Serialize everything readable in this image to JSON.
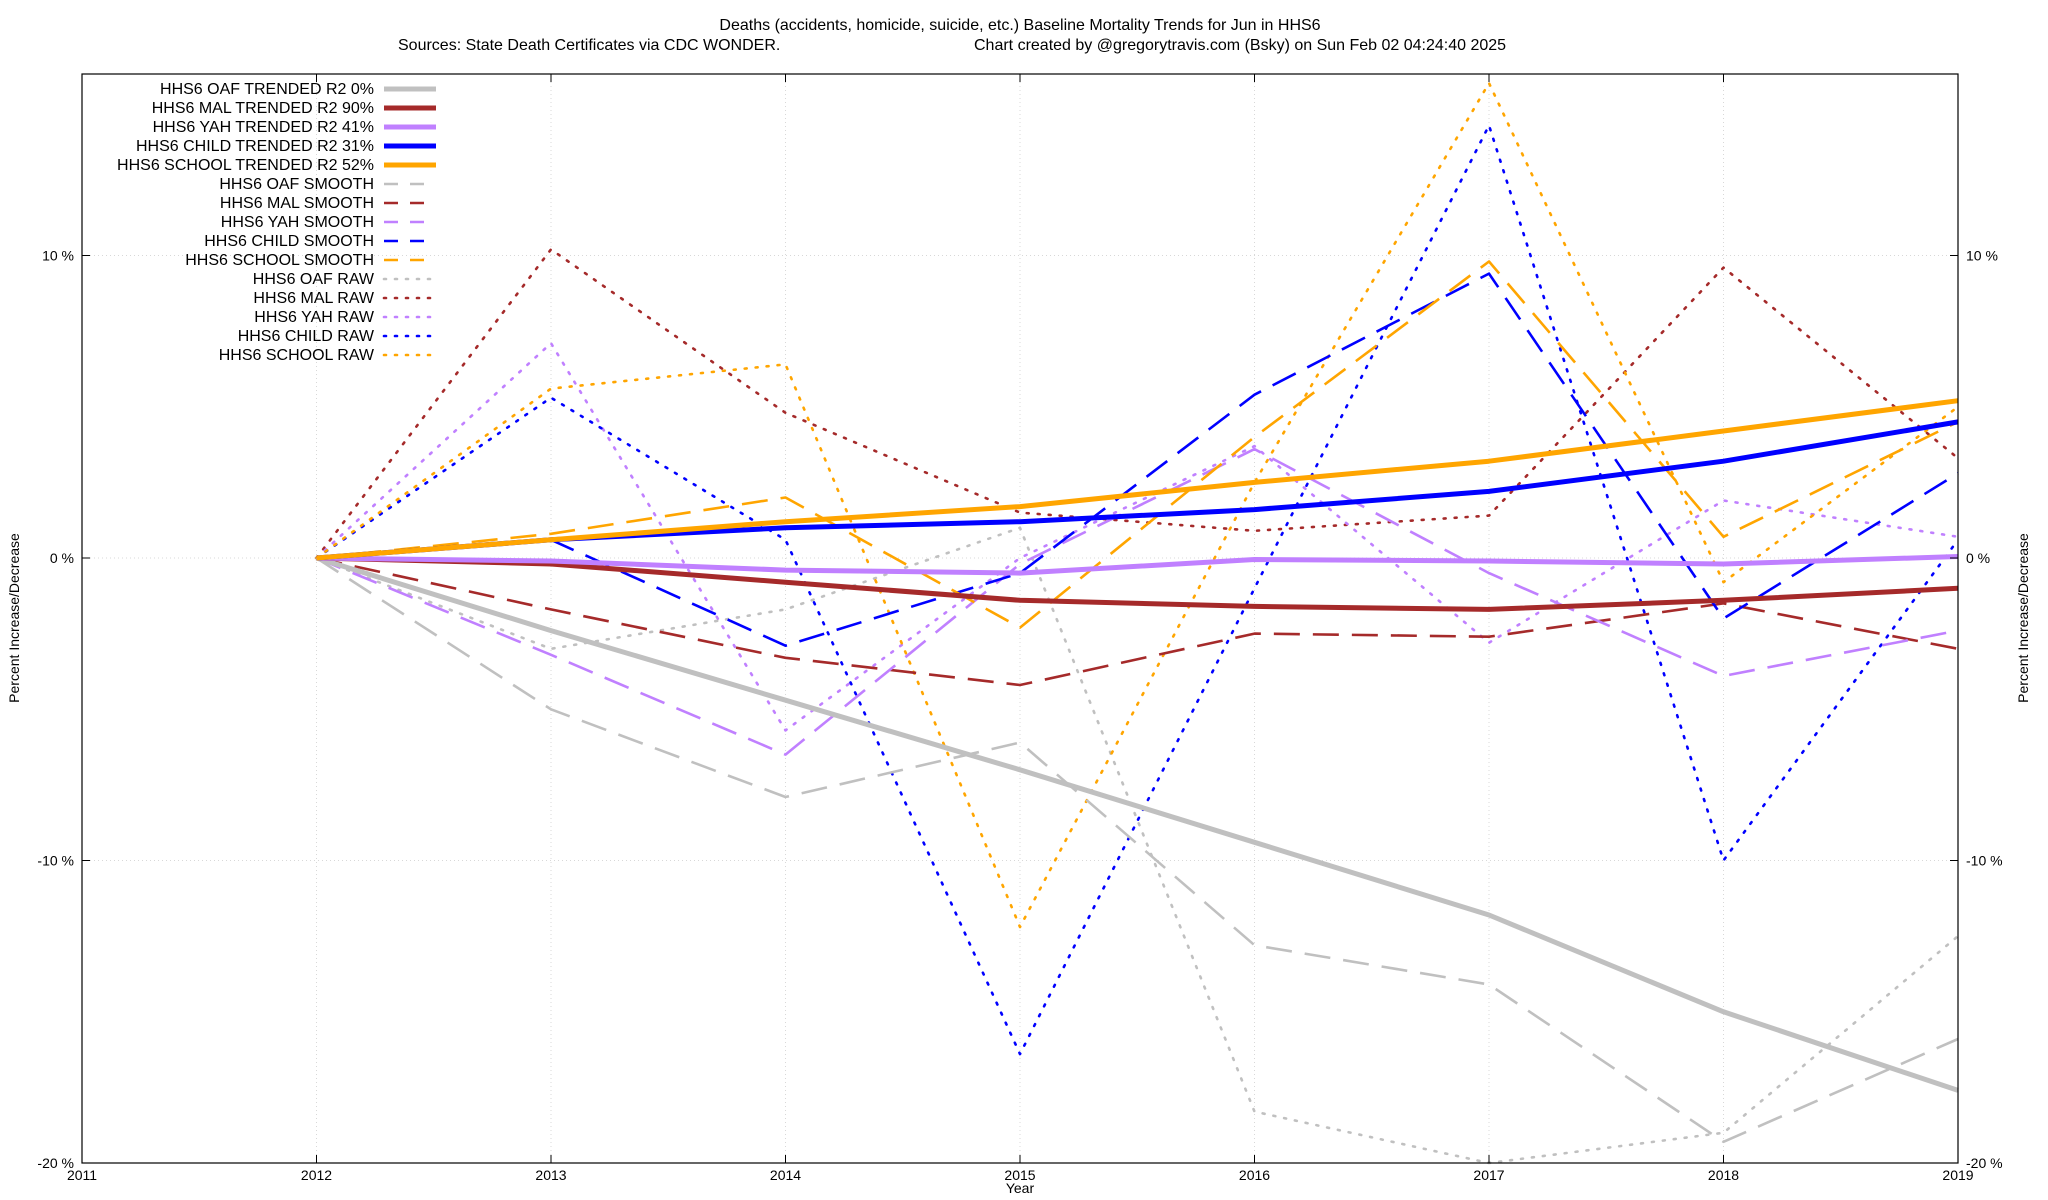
{
  "chart_data": {
    "type": "line",
    "title": "Deaths (accidents, homicide, suicide, etc.)  Baseline Mortality Trends for Jun in HHS6",
    "subtitle_left": "Sources: State Death Certificates via CDC WONDER.",
    "subtitle_right": "Chart created by @gregorytravis.com (Bsky) on Sun Feb 02 04:24:40 2025",
    "xlabel": "Year",
    "ylabel_left": "Percent Increase/Decrease",
    "ylabel_right": "Percent Increase/Decrease",
    "xlim": [
      2011,
      2019
    ],
    "ylim": [
      -20,
      16
    ],
    "x_ticks": [
      "2011",
      "2012",
      "2013",
      "2014",
      "2015",
      "2016",
      "2017",
      "2018",
      "2019"
    ],
    "y_ticks_left": [
      {
        "value": 10,
        "label": "10 %"
      },
      {
        "value": 0,
        "label": "0 %"
      },
      {
        "value": -10,
        "label": "-10 %"
      },
      {
        "value": -20,
        "label": "-20 %"
      }
    ],
    "y_ticks_right": [
      {
        "value": 10,
        "label": "10 %"
      },
      {
        "value": 0,
        "label": "0 %"
      },
      {
        "value": -10,
        "label": "-10 %"
      },
      {
        "value": -20,
        "label": "-20 %"
      }
    ],
    "grid": true,
    "legend_position": "top-left",
    "x": [
      2012,
      2013,
      2014,
      2015,
      2016,
      2017,
      2018,
      2019
    ],
    "series": [
      {
        "name": "HHS6 OAF TRENDED R2  0%",
        "style": "solid",
        "color": "#c0c0c0",
        "values": [
          0,
          -2.4,
          -4.7,
          -7.0,
          -9.4,
          -11.8,
          -15.0,
          -17.6
        ]
      },
      {
        "name": "HHS6 MAL TRENDED R2  90%",
        "style": "solid",
        "color": "#a52a2a",
        "values": [
          0,
          -0.2,
          -0.8,
          -1.4,
          -1.6,
          -1.7,
          -1.4,
          -1.0
        ]
      },
      {
        "name": "HHS6 YAH TRENDED R2  41%",
        "style": "solid",
        "color": "#c080ff",
        "values": [
          0,
          -0.1,
          -0.4,
          -0.5,
          -0.05,
          -0.1,
          -0.2,
          0.05
        ]
      },
      {
        "name": "HHS6 CHILD TRENDED R2  31%",
        "style": "solid",
        "color": "#0000ff",
        "values": [
          0,
          0.6,
          1.0,
          1.2,
          1.6,
          2.2,
          3.2,
          4.5
        ]
      },
      {
        "name": "HHS6 SCHOOL TRENDED R2  52%",
        "style": "solid",
        "color": "#ffa500",
        "values": [
          0,
          0.6,
          1.2,
          1.7,
          2.5,
          3.2,
          4.2,
          5.2
        ]
      },
      {
        "name": "HHS6 OAF SMOOTH",
        "style": "dash",
        "color": "#c0c0c0",
        "values": [
          0,
          -5.0,
          -7.9,
          -6.1,
          -12.8,
          -14.1,
          -19.3,
          -15.9
        ]
      },
      {
        "name": "HHS6 MAL SMOOTH",
        "style": "dash",
        "color": "#a52a2a",
        "values": [
          0,
          -1.7,
          -3.3,
          -4.2,
          -2.5,
          -2.6,
          -1.5,
          -3.0
        ]
      },
      {
        "name": "HHS6 YAH SMOOTH",
        "style": "dash",
        "color": "#c080ff",
        "values": [
          0,
          -3.2,
          -6.5,
          -0.2,
          3.6,
          -0.5,
          -3.9,
          -2.4
        ]
      },
      {
        "name": "HHS6 CHILD SMOOTH",
        "style": "dash",
        "color": "#0000ff",
        "values": [
          0,
          0.6,
          -2.9,
          -0.5,
          5.4,
          9.4,
          -2.0,
          2.8
        ]
      },
      {
        "name": "HHS6 SCHOOL SMOOTH",
        "style": "dash",
        "color": "#ffa500",
        "values": [
          0,
          0.8,
          2.0,
          -2.3,
          4.0,
          9.8,
          0.7,
          4.5
        ]
      },
      {
        "name": "HHS6 OAF RAW",
        "style": "dot",
        "color": "#c0c0c0",
        "values": [
          0,
          -3.0,
          -1.7,
          1.0,
          -18.3,
          -20.0,
          -19.0,
          -12.5
        ]
      },
      {
        "name": "HHS6 MAL RAW",
        "style": "dot",
        "color": "#a52a2a",
        "values": [
          0,
          10.2,
          4.8,
          1.5,
          0.9,
          1.4,
          9.6,
          3.3
        ]
      },
      {
        "name": "HHS6 YAH RAW",
        "style": "dot",
        "color": "#c080ff",
        "values": [
          0,
          7.1,
          -5.7,
          0.0,
          3.7,
          -2.8,
          1.9,
          0.7
        ]
      },
      {
        "name": "HHS6 CHILD RAW",
        "style": "dot",
        "color": "#0000ff",
        "values": [
          0,
          5.3,
          0.6,
          -16.4,
          -1.0,
          14.3,
          -10.0,
          0.6
        ]
      },
      {
        "name": "HHS6 SCHOOL RAW",
        "style": "dot",
        "color": "#ffa500",
        "values": [
          0,
          5.6,
          6.4,
          -12.2,
          2.5,
          15.7,
          -0.8,
          5.0
        ]
      }
    ]
  }
}
